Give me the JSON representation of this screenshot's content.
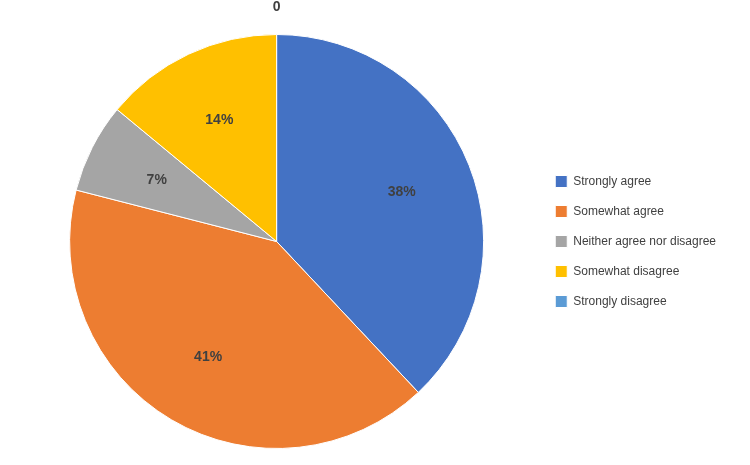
{
  "chart_data": {
    "type": "pie",
    "categories": [
      "Strongly agree",
      "Somewhat agree",
      "Neither agree nor disagree",
      "Somewhat disagree",
      "Strongly disagree"
    ],
    "values": [
      38,
      41,
      7,
      14,
      0
    ],
    "value_labels": [
      "38%",
      "41%",
      "7%",
      "14%",
      "0"
    ],
    "colors": [
      "#4472C4",
      "#ED7D31",
      "#A5A5A5",
      "#FFC000",
      "#5B9BD5"
    ],
    "data_labels": true,
    "legend": "right"
  }
}
